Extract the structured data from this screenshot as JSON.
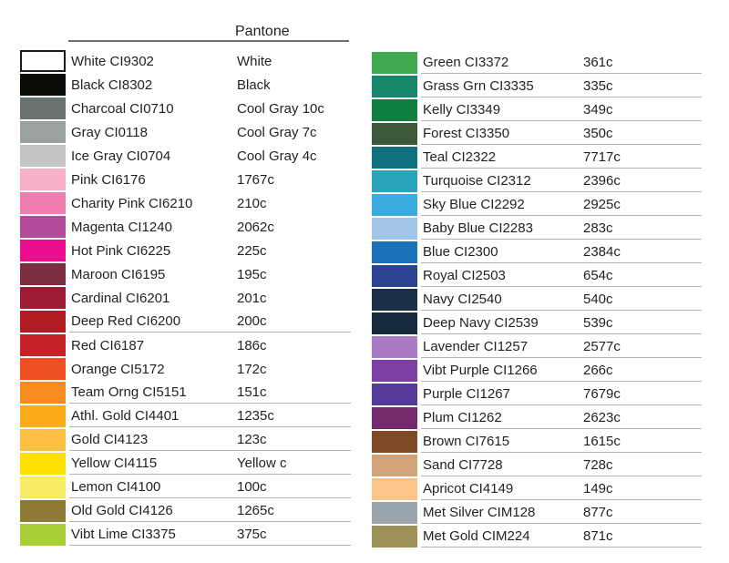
{
  "chart_data": {
    "type": "table",
    "title": "Pantone",
    "columns": [
      "swatch",
      "name_code",
      "pantone"
    ],
    "left_rows": [
      {
        "name": "White",
        "code": "CI9302",
        "pantone": "White",
        "swatch": "#FFFFFF",
        "bordered": true,
        "underline": false
      },
      {
        "name": "Black",
        "code": "CI8302",
        "pantone": "Black",
        "swatch": "#0B0C08",
        "bordered": false,
        "underline": false
      },
      {
        "name": "Charcoal",
        "code": "CI0710",
        "pantone": "Cool Gray 10c",
        "swatch": "#687270",
        "bordered": false,
        "underline": false
      },
      {
        "name": "Gray",
        "code": "CI0118",
        "pantone": "Cool Gray 7c",
        "swatch": "#9AA19F",
        "bordered": false,
        "underline": false
      },
      {
        "name": "Ice Gray",
        "code": "CI0704",
        "pantone": "Cool Gray 4c",
        "swatch": "#C3C6C4",
        "bordered": false,
        "underline": false
      },
      {
        "name": "Pink",
        "code": "CI6176",
        "pantone": "1767c",
        "swatch": "#F8B1C8",
        "bordered": false,
        "underline": false
      },
      {
        "name": "Charity Pink",
        "code": "CI6210",
        "pantone": "210c",
        "swatch": "#F07EB0",
        "bordered": false,
        "underline": false
      },
      {
        "name": "Magenta",
        "code": "CI1240",
        "pantone": "2062c",
        "swatch": "#B44C9B",
        "bordered": false,
        "underline": false
      },
      {
        "name": "Hot Pink",
        "code": "CI6225",
        "pantone": "225c",
        "swatch": "#EE0D8E",
        "bordered": false,
        "underline": false
      },
      {
        "name": "Maroon",
        "code": "CI6195",
        "pantone": "195c",
        "swatch": "#7D2B3E",
        "bordered": false,
        "underline": false
      },
      {
        "name": "Cardinal",
        "code": "CI6201",
        "pantone": "201c",
        "swatch": "#9E1B35",
        "bordered": false,
        "underline": false
      },
      {
        "name": "Deep Red",
        "code": "CI6200",
        "pantone": "200c",
        "swatch": "#B21D24",
        "bordered": false,
        "underline": true
      },
      {
        "name": "Red",
        "code": "CI6187",
        "pantone": "186c",
        "swatch": "#C52128",
        "bordered": false,
        "underline": false
      },
      {
        "name": "Orange",
        "code": "CI5172",
        "pantone": "172c",
        "swatch": "#F04E23",
        "bordered": false,
        "underline": false
      },
      {
        "name": "Team Orng",
        "code": "CI5151",
        "pantone": "151c",
        "swatch": "#F68B1F",
        "bordered": false,
        "underline": true
      },
      {
        "name": "Athl. Gold",
        "code": "CI4401",
        "pantone": "1235c",
        "swatch": "#FBAC18",
        "bordered": false,
        "underline": true
      },
      {
        "name": "Gold",
        "code": "CI4123",
        "pantone": "123c",
        "swatch": "#FCC044",
        "bordered": false,
        "underline": true
      },
      {
        "name": "Yellow",
        "code": "CI4115",
        "pantone": "Yellow c",
        "swatch": "#FDE000",
        "bordered": false,
        "underline": true
      },
      {
        "name": "Lemon",
        "code": "CI4100",
        "pantone": "100c",
        "swatch": "#F6EB63",
        "bordered": false,
        "underline": true
      },
      {
        "name": "Old Gold",
        "code": "CI4126",
        "pantone": "1265c",
        "swatch": "#8F7A35",
        "bordered": false,
        "underline": true
      },
      {
        "name": "Vibt Lime",
        "code": "CI3375",
        "pantone": "375c",
        "swatch": "#A8CE38",
        "bordered": false,
        "underline": true
      }
    ],
    "right_rows": [
      {
        "name": "Green",
        "code": "CI3372",
        "pantone": "361c",
        "swatch": "#41A94E",
        "bordered": false,
        "underline": true
      },
      {
        "name": "Grass Grn",
        "code": "CI3335",
        "pantone": "335c",
        "swatch": "#17866B",
        "bordered": false,
        "underline": true
      },
      {
        "name": "Kelly",
        "code": "CI3349",
        "pantone": "349c",
        "swatch": "#0F7F40",
        "bordered": false,
        "underline": true
      },
      {
        "name": "Forest",
        "code": "CI3350",
        "pantone": "350c",
        "swatch": "#3B5838",
        "bordered": false,
        "underline": true
      },
      {
        "name": "Teal",
        "code": "CI2322",
        "pantone": "7717c",
        "swatch": "#0F707E",
        "bordered": false,
        "underline": true
      },
      {
        "name": "Turquoise",
        "code": "CI2312",
        "pantone": "2396c",
        "swatch": "#2AA5BB",
        "bordered": false,
        "underline": true
      },
      {
        "name": "Sky Blue",
        "code": "CI2292",
        "pantone": "2925c",
        "swatch": "#3BABE0",
        "bordered": false,
        "underline": true
      },
      {
        "name": "Baby Blue",
        "code": "CI2283",
        "pantone": "283c",
        "swatch": "#A3C6E8",
        "bordered": false,
        "underline": true
      },
      {
        "name": "Blue",
        "code": "CI2300",
        "pantone": "2384c",
        "swatch": "#1B72B8",
        "bordered": false,
        "underline": true
      },
      {
        "name": "Royal",
        "code": "CI2503",
        "pantone": "654c",
        "swatch": "#2A4491",
        "bordered": false,
        "underline": true
      },
      {
        "name": "Navy",
        "code": "CI2540",
        "pantone": "540c",
        "swatch": "#182F47",
        "bordered": false,
        "underline": true
      },
      {
        "name": "Deep Navy",
        "code": "CI2539",
        "pantone": "539c",
        "swatch": "#152A3D",
        "bordered": false,
        "underline": true
      },
      {
        "name": "Lavender",
        "code": "CI1257",
        "pantone": "2577c",
        "swatch": "#AA7CC6",
        "bordered": false,
        "underline": true
      },
      {
        "name": "Vibt Purple",
        "code": "CI1266",
        "pantone": "266c",
        "swatch": "#7C3FA5",
        "bordered": false,
        "underline": true
      },
      {
        "name": "Purple",
        "code": "CI1267",
        "pantone": "7679c",
        "swatch": "#553A9A",
        "bordered": false,
        "underline": true
      },
      {
        "name": "Plum",
        "code": "CI1262",
        "pantone": "2623c",
        "swatch": "#762A6E",
        "bordered": false,
        "underline": true
      },
      {
        "name": "Brown",
        "code": "CI7615",
        "pantone": "1615c",
        "swatch": "#7F4A25",
        "bordered": false,
        "underline": true
      },
      {
        "name": "Sand",
        "code": "CI7728",
        "pantone": "728c",
        "swatch": "#D0A378",
        "bordered": false,
        "underline": true
      },
      {
        "name": "Apricot",
        "code": "CI4149",
        "pantone": "149c",
        "swatch": "#FCC488",
        "bordered": false,
        "underline": true
      },
      {
        "name": "Met Silver",
        "code": "CIM128",
        "pantone": "877c",
        "swatch": "#9BA5AE",
        "bordered": false,
        "underline": true
      },
      {
        "name": "Met Gold",
        "code": "CIM224",
        "pantone": "871c",
        "swatch": "#9E9158",
        "bordered": false,
        "underline": true
      }
    ]
  },
  "colors": {
    "text": "#231F20",
    "header_line": "#6D6E71",
    "row_line": "#B3B3B3",
    "background": "#FFFFFF",
    "white_swatch_border": "#1A1A1A"
  }
}
